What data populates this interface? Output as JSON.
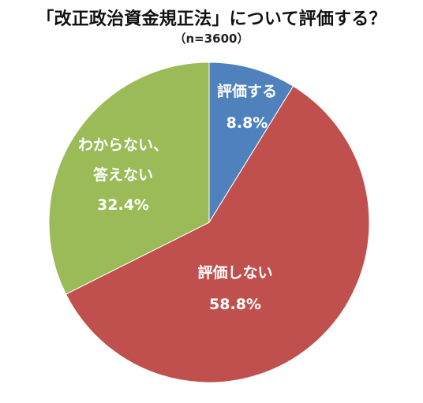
{
  "chart_data": {
    "type": "pie",
    "title": "「改正政治資金規正法」について評価する？",
    "subtitle": "（n=3600）",
    "slices": [
      {
        "label": "評価する",
        "value": 8.8,
        "value_label": "8.8%",
        "color": "#4f81bd"
      },
      {
        "label": "評価しない",
        "value": 58.8,
        "value_label": "58.8%",
        "color": "#c0504d"
      },
      {
        "label": "わからない、\n答えない",
        "value": 32.4,
        "value_label": "32.4%",
        "color": "#9bbb59"
      }
    ],
    "start": "12 o'clock",
    "direction": "clockwise",
    "legend": "none"
  }
}
